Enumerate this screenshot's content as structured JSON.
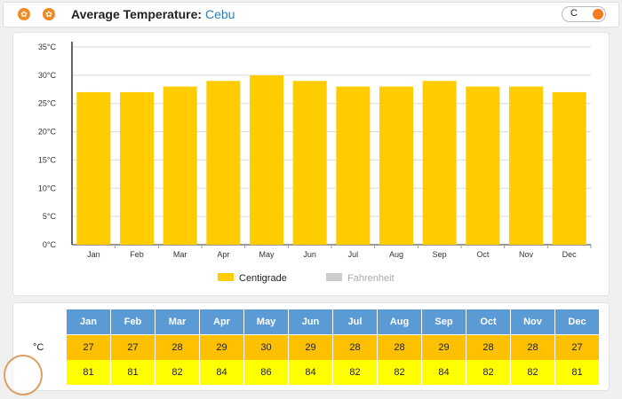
{
  "header": {
    "title": "Average Temperature:",
    "city": "Cebu",
    "toggle_label": "C",
    "left_icons": [
      "thermometer-icon",
      "weather-icon"
    ]
  },
  "chart_data": {
    "type": "bar",
    "categories": [
      "Jan",
      "Feb",
      "Mar",
      "Apr",
      "May",
      "Jun",
      "Jul",
      "Aug",
      "Sep",
      "Oct",
      "Nov",
      "Dec"
    ],
    "series": [
      {
        "name": "Centigrade",
        "values": [
          27,
          27,
          28,
          29,
          30,
          29,
          28,
          28,
          29,
          28,
          28,
          27
        ],
        "color": "#ffcc00"
      }
    ],
    "y_ticks": [
      "0°C",
      "5°C",
      "10°C",
      "15°C",
      "20°C",
      "25°C",
      "30°C",
      "35°C"
    ],
    "ylim": [
      0,
      35
    ],
    "grid": true,
    "legend": [
      {
        "label": "Centigrade",
        "color": "#ffcc00",
        "active": true
      },
      {
        "label": "Fahrenheit",
        "color": "#cccccc",
        "active": false
      }
    ],
    "legend_position": "bottom"
  },
  "table": {
    "row_label_c": "°C",
    "months": [
      "Jan",
      "Feb",
      "Mar",
      "Apr",
      "May",
      "Jun",
      "Jul",
      "Aug",
      "Sep",
      "Oct",
      "Nov",
      "Dec"
    ],
    "celsius": [
      "27",
      "27",
      "28",
      "29",
      "30",
      "29",
      "28",
      "28",
      "29",
      "28",
      "28",
      "27"
    ],
    "fahrenheit": [
      "81",
      "81",
      "82",
      "84",
      "86",
      "84",
      "82",
      "82",
      "84",
      "82",
      "82",
      "81"
    ],
    "colors": {
      "header": "#5b9bd5",
      "celsius_row": "#ffc000",
      "fahrenheit_row": "#ffff00"
    }
  }
}
